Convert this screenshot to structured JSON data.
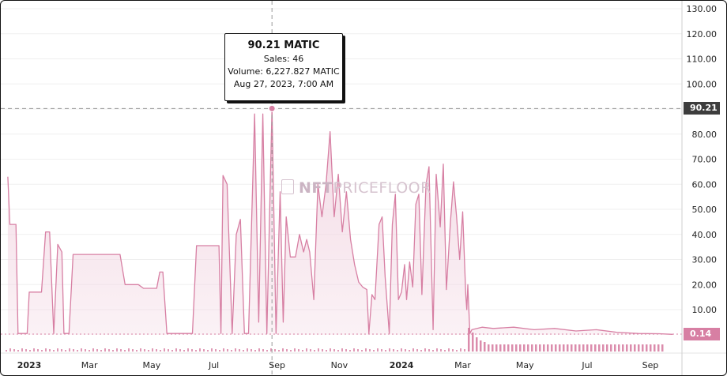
{
  "tooltip": {
    "title": "90.21 MATIC",
    "sales": "Sales: 46",
    "volume": "Volume: 6,227.827 MATIC",
    "date": "Aug 27, 2023, 7:00 AM"
  },
  "watermark": {
    "bold": "NFT",
    "rest": "PRICEFLOOR"
  },
  "crosshair_label": "90.21",
  "last_price_label": "0.14",
  "colors": {
    "line": "#d77fa3",
    "fill": "#f3d9e4",
    "volume": "#d77fa3",
    "axis_badge": "#3d3d3d",
    "last_badge": "#d77fa3"
  },
  "chart_data": {
    "type": "area",
    "y_unit": "MATIC",
    "ylim": [
      -12,
      133
    ],
    "y_ticks": [
      "130.00",
      "120.00",
      "110.00",
      "100.00",
      "90.00",
      "80.00",
      "70.00",
      "60.00",
      "50.00",
      "40.00",
      "30.00",
      "20.00",
      "10.00"
    ],
    "x_ticks": [
      {
        "label": "2023",
        "date": "2023-01-01",
        "bold": true
      },
      {
        "label": "Mar",
        "date": "2023-03-01",
        "bold": false
      },
      {
        "label": "May",
        "date": "2023-05-01",
        "bold": false
      },
      {
        "label": "Jul",
        "date": "2023-07-01",
        "bold": false
      },
      {
        "label": "Sep",
        "date": "2023-09-01",
        "bold": false
      },
      {
        "label": "Nov",
        "date": "2023-11-01",
        "bold": false
      },
      {
        "label": "2024",
        "date": "2024-01-01",
        "bold": true
      },
      {
        "label": "Mar",
        "date": "2024-03-01",
        "bold": false
      },
      {
        "label": "May",
        "date": "2024-05-01",
        "bold": false
      },
      {
        "label": "Jul",
        "date": "2024-07-01",
        "bold": false
      },
      {
        "label": "Sep",
        "date": "2024-09-01",
        "bold": false
      }
    ],
    "highlight": {
      "date": "2023-08-27",
      "value": 90.21
    },
    "last_value": 0.14,
    "series": [
      {
        "values": [
          [
            "2022-12-11",
            63
          ],
          [
            "2022-12-13",
            44
          ],
          [
            "2022-12-19",
            44
          ],
          [
            "2022-12-21",
            0.5
          ],
          [
            "2022-12-30",
            0.5
          ],
          [
            "2023-01-01",
            17
          ],
          [
            "2023-01-13",
            17
          ],
          [
            "2023-01-17",
            41
          ],
          [
            "2023-01-21",
            41
          ],
          [
            "2023-01-25",
            0.5
          ],
          [
            "2023-01-29",
            36
          ],
          [
            "2023-02-02",
            33
          ],
          [
            "2023-02-04",
            0.5
          ],
          [
            "2023-02-09",
            0.5
          ],
          [
            "2023-02-13",
            32
          ],
          [
            "2023-03-09",
            32
          ],
          [
            "2023-03-31",
            32
          ],
          [
            "2023-04-05",
            20
          ],
          [
            "2023-04-18",
            20
          ],
          [
            "2023-04-23",
            18.5
          ],
          [
            "2023-05-06",
            18.5
          ],
          [
            "2023-05-09",
            25
          ],
          [
            "2023-05-12",
            25
          ],
          [
            "2023-05-16",
            0.5
          ],
          [
            "2023-05-20",
            0.5
          ],
          [
            "2023-06-10",
            0.5
          ],
          [
            "2023-06-14",
            35.5
          ],
          [
            "2023-06-29",
            35.5
          ],
          [
            "2023-07-06",
            35.5
          ],
          [
            "2023-07-08",
            0.5
          ],
          [
            "2023-07-10",
            63.5
          ],
          [
            "2023-07-14",
            60
          ],
          [
            "2023-07-19",
            0.5
          ],
          [
            "2023-07-23",
            40
          ],
          [
            "2023-07-27",
            46
          ],
          [
            "2023-07-31",
            0.5
          ],
          [
            "2023-08-04",
            0.5
          ],
          [
            "2023-08-10",
            88
          ],
          [
            "2023-08-14",
            5
          ],
          [
            "2023-08-18",
            88
          ],
          [
            "2023-08-22",
            0.5
          ],
          [
            "2023-08-27",
            90.21
          ],
          [
            "2023-08-31",
            0.5
          ],
          [
            "2023-09-04",
            57
          ],
          [
            "2023-09-07",
            5
          ],
          [
            "2023-09-10",
            47
          ],
          [
            "2023-09-14",
            31
          ],
          [
            "2023-09-19",
            31
          ],
          [
            "2023-09-23",
            40
          ],
          [
            "2023-09-27",
            33
          ],
          [
            "2023-09-30",
            38
          ],
          [
            "2023-10-03",
            33
          ],
          [
            "2023-10-07",
            14
          ],
          [
            "2023-10-11",
            60
          ],
          [
            "2023-10-15",
            47
          ],
          [
            "2023-10-19",
            60
          ],
          [
            "2023-10-23",
            81
          ],
          [
            "2023-10-27",
            47
          ],
          [
            "2023-10-31",
            64
          ],
          [
            "2023-11-04",
            41
          ],
          [
            "2023-11-08",
            57
          ],
          [
            "2023-11-12",
            38
          ],
          [
            "2023-11-16",
            28
          ],
          [
            "2023-11-20",
            21
          ],
          [
            "2023-11-24",
            19
          ],
          [
            "2023-11-28",
            18
          ],
          [
            "2023-11-30",
            0.5
          ],
          [
            "2023-12-03",
            16
          ],
          [
            "2023-12-06",
            14
          ],
          [
            "2023-12-10",
            44
          ],
          [
            "2023-12-13",
            47
          ],
          [
            "2023-12-16",
            23
          ],
          [
            "2023-12-20",
            0.5
          ],
          [
            "2023-12-23",
            44
          ],
          [
            "2023-12-26",
            56
          ],
          [
            "2023-12-29",
            14
          ],
          [
            "2024-01-01",
            17
          ],
          [
            "2024-01-04",
            28
          ],
          [
            "2024-01-06",
            14
          ],
          [
            "2024-01-09",
            29
          ],
          [
            "2024-01-12",
            19
          ],
          [
            "2024-01-15",
            52
          ],
          [
            "2024-01-18",
            56
          ],
          [
            "2024-01-21",
            16
          ],
          [
            "2024-01-25",
            60
          ],
          [
            "2024-01-28",
            67
          ],
          [
            "2024-02-01",
            2
          ],
          [
            "2024-02-04",
            64
          ],
          [
            "2024-02-08",
            43
          ],
          [
            "2024-02-11",
            68
          ],
          [
            "2024-02-14",
            18
          ],
          [
            "2024-02-18",
            45
          ],
          [
            "2024-02-21",
            61
          ],
          [
            "2024-02-24",
            47
          ],
          [
            "2024-02-27",
            30
          ],
          [
            "2024-03-01",
            49
          ],
          [
            "2024-03-04",
            16
          ],
          [
            "2024-03-05",
            10
          ],
          [
            "2024-03-06",
            20
          ],
          [
            "2024-03-08",
            0.5
          ],
          [
            "2024-03-10",
            2
          ],
          [
            "2024-03-20",
            3
          ],
          [
            "2024-03-31",
            2.5
          ],
          [
            "2024-04-20",
            3
          ],
          [
            "2024-05-10",
            2
          ],
          [
            "2024-05-30",
            2.5
          ],
          [
            "2024-06-20",
            1.5
          ],
          [
            "2024-07-10",
            2
          ],
          [
            "2024-07-30",
            1
          ],
          [
            "2024-08-20",
            0.5
          ],
          [
            "2024-09-10",
            0.4
          ],
          [
            "2024-09-23",
            0.14
          ]
        ]
      }
    ]
  }
}
